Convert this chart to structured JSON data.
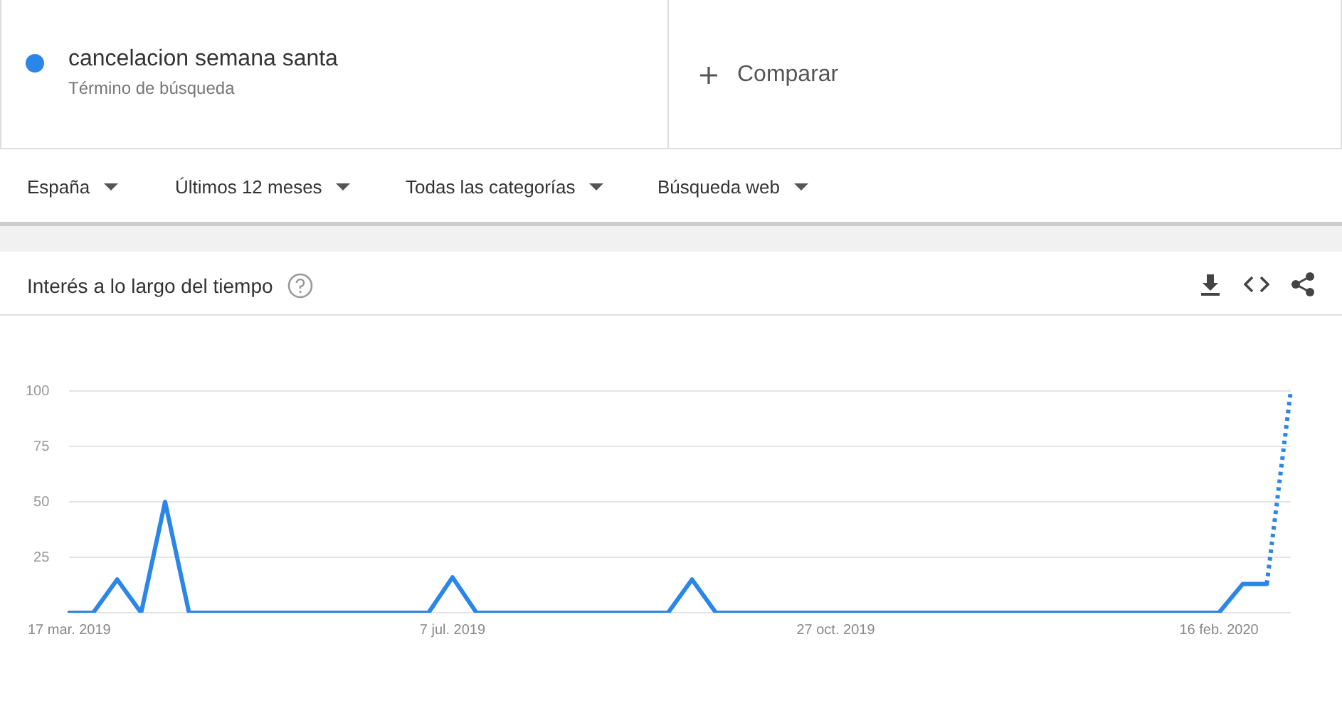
{
  "chart_data": {
    "type": "line",
    "title": "Interés a lo largo del tiempo",
    "categories": [
      "17 mar. 2019",
      null,
      null,
      null,
      null,
      null,
      null,
      null,
      null,
      null,
      null,
      null,
      null,
      null,
      null,
      null,
      "7 jul. 2019",
      null,
      null,
      null,
      null,
      null,
      null,
      null,
      null,
      null,
      null,
      null,
      null,
      null,
      null,
      null,
      "27 oct. 2019",
      null,
      null,
      null,
      null,
      null,
      null,
      null,
      null,
      null,
      null,
      null,
      null,
      null,
      null,
      null,
      "16 feb. 2020",
      null,
      null,
      null
    ],
    "series": [
      {
        "name": "cancelacion semana santa",
        "color": "#2a86e8",
        "line_style": "solid",
        "values": [
          0,
          0,
          15,
          0,
          50,
          0,
          0,
          0,
          0,
          0,
          0,
          0,
          0,
          0,
          0,
          0,
          16,
          0,
          0,
          0,
          0,
          0,
          0,
          0,
          0,
          0,
          15,
          0,
          0,
          0,
          0,
          0,
          0,
          0,
          0,
          0,
          0,
          0,
          0,
          0,
          0,
          0,
          0,
          0,
          0,
          0,
          0,
          0,
          0,
          13,
          13,
          null
        ]
      },
      {
        "color": "#2a86e8",
        "line_style": "dotted",
        "values": [
          null,
          null,
          null,
          null,
          null,
          null,
          null,
          null,
          null,
          null,
          null,
          null,
          null,
          null,
          null,
          null,
          null,
          null,
          null,
          null,
          null,
          null,
          null,
          null,
          null,
          null,
          null,
          null,
          null,
          null,
          null,
          null,
          null,
          null,
          null,
          null,
          null,
          null,
          null,
          null,
          null,
          null,
          null,
          null,
          null,
          null,
          null,
          null,
          null,
          null,
          13,
          100
        ]
      }
    ],
    "ylim": [
      0,
      100
    ],
    "yticks": [
      {
        "value": 0,
        "label": null
      },
      25,
      50,
      75,
      100
    ],
    "grid": "y",
    "marker": "none",
    "legend": "top left",
    "annotations": [
      "Término de búsqueda",
      "Comparar",
      "España",
      "Últimos 12 meses",
      "Todas las categorías",
      "Búsqueda web"
    ]
  }
}
